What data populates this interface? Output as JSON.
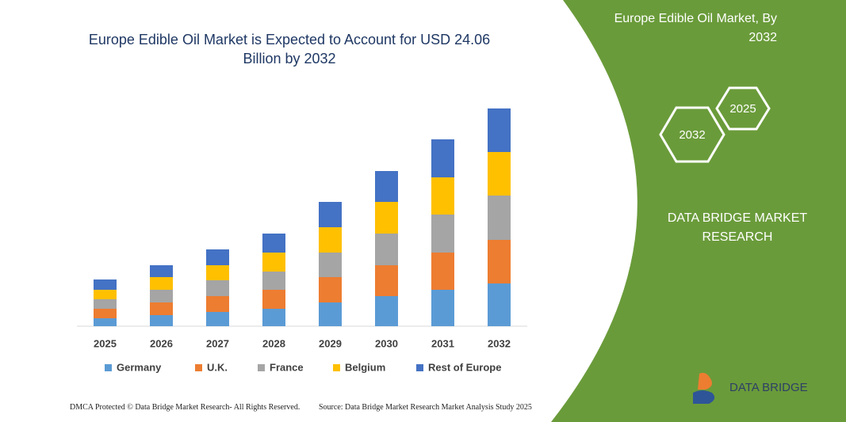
{
  "chart_data": {
    "type": "stacked-bar",
    "title": "Europe Edible Oil Market is Expected to Account for USD 24.06 Billion by 2032",
    "categories": [
      "2025",
      "2026",
      "2027",
      "2028",
      "2029",
      "2030",
      "2031",
      "2032"
    ],
    "series": [
      {
        "name": "Germany",
        "color": "#5b9bd5",
        "values": [
          10,
          14,
          18,
          22,
          30,
          38,
          46,
          54
        ]
      },
      {
        "name": "U.K.",
        "color": "#ed7d31",
        "values": [
          12,
          16,
          20,
          24,
          32,
          39,
          47,
          55
        ]
      },
      {
        "name": "France",
        "color": "#a5a5a5",
        "values": [
          12,
          16,
          20,
          23,
          31,
          40,
          48,
          56
        ]
      },
      {
        "name": "Belgium",
        "color": "#ffc000",
        "values": [
          12,
          16,
          19,
          24,
          32,
          40,
          47,
          55
        ]
      },
      {
        "name": "Rest of Europe",
        "color": "#4472c4",
        "values": [
          13,
          15,
          20,
          24,
          32,
          39,
          48,
          55
        ]
      }
    ],
    "ylim": [
      0,
      300
    ]
  },
  "panel": {
    "title": "Europe Edible Oil Market, By 2032",
    "hexagons": [
      "2025",
      "2032"
    ],
    "company": "DATA BRIDGE MARKET RESEARCH",
    "logo": "DATA BRIDGE"
  },
  "footer": {
    "left": "DMCA Protected © Data Bridge Market Research- All Rights Reserved.",
    "right": "Source: Data Bridge Market Research Market Analysis Study 2025"
  }
}
